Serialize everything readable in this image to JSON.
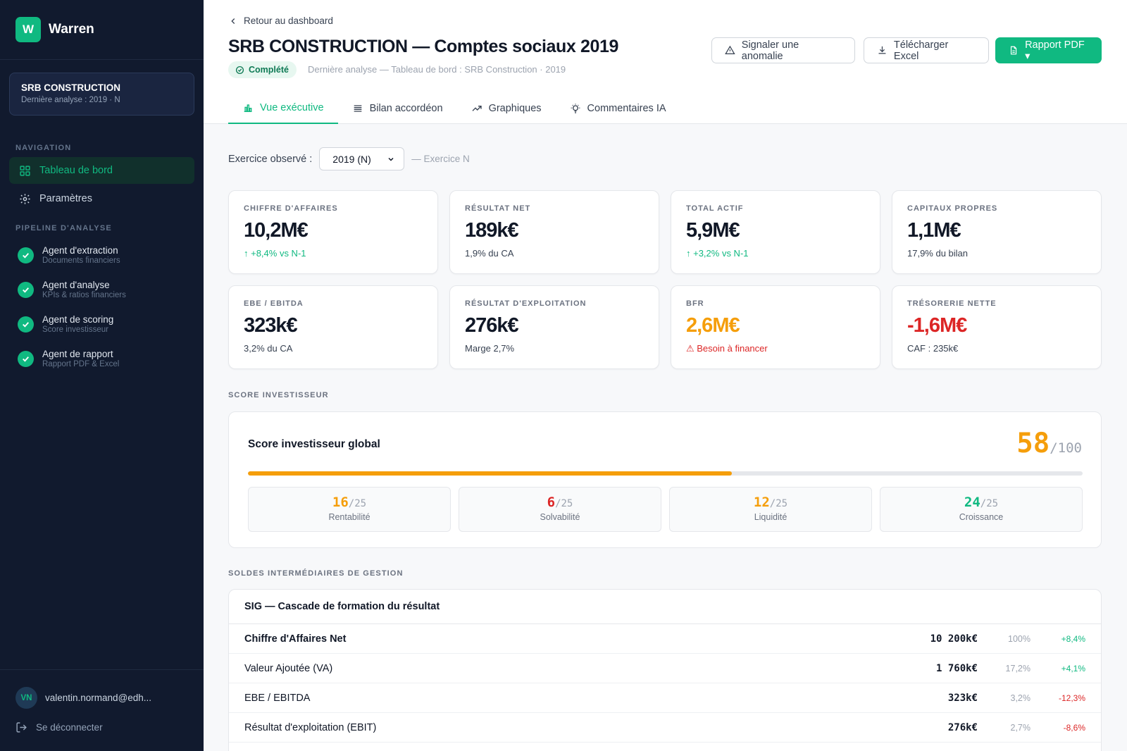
{
  "brand": {
    "logo_letter": "W",
    "name": "Warren",
    "accent": "#10b981"
  },
  "company": {
    "name": "SRB CONSTRUCTION",
    "last_analysis": "Dernière analyse : 2019 · N"
  },
  "sidebar": {
    "nav_label": "NAVIGATION",
    "nav": [
      {
        "label": "Tableau de bord",
        "icon": "grid-icon",
        "active": true
      },
      {
        "label": "Paramètres",
        "icon": "gear-icon",
        "active": false
      }
    ],
    "pipeline_label": "PIPELINE D'ANALYSE",
    "pipeline": [
      {
        "title": "Agent d'extraction",
        "sub": "Documents financiers"
      },
      {
        "title": "Agent d'analyse",
        "sub": "KPIs & ratios financiers"
      },
      {
        "title": "Agent de scoring",
        "sub": "Score investisseur"
      },
      {
        "title": "Agent de rapport",
        "sub": "Rapport PDF & Excel"
      }
    ],
    "user": {
      "initials": "VN",
      "email": "valentin.normand@edh..."
    },
    "logout": "Se déconnecter"
  },
  "header": {
    "back": "Retour au dashboard",
    "title": "SRB CONSTRUCTION — Comptes sociaux 2019",
    "status": "Complété",
    "last_analysis": "Dernière analyse — Tableau de bord : SRB Construction · 2019",
    "buttons": {
      "anomaly": "Signaler une anomalie",
      "excel": "Télécharger Excel",
      "pdf": "Rapport PDF ▾"
    },
    "tabs": [
      {
        "label": "Vue exécutive",
        "icon": "bar-chart-icon",
        "active": true
      },
      {
        "label": "Bilan accordéon",
        "icon": "list-icon",
        "active": false
      },
      {
        "label": "Graphiques",
        "icon": "trend-icon",
        "active": false
      },
      {
        "label": "Commentaires IA",
        "icon": "lightbulb-icon",
        "active": false
      }
    ]
  },
  "exercise": {
    "label": "Exercice observé :",
    "selected": "2019 (N)",
    "note": "— Exercice N"
  },
  "kpis": [
    {
      "label": "CHIFFRE D'AFFAIRES",
      "value": "10,2M€",
      "sub": "↑ +8,4% vs N-1",
      "value_color": "default",
      "sub_color": "green"
    },
    {
      "label": "RÉSULTAT NET",
      "value": "189k€",
      "sub": "1,9% du CA",
      "value_color": "default",
      "sub_color": "default"
    },
    {
      "label": "TOTAL ACTIF",
      "value": "5,9M€",
      "sub": "↑ +3,2% vs N-1",
      "value_color": "default",
      "sub_color": "green"
    },
    {
      "label": "CAPITAUX PROPRES",
      "value": "1,1M€",
      "sub": "17,9% du bilan",
      "value_color": "default",
      "sub_color": "default"
    },
    {
      "label": "EBE / EBITDA",
      "value": "323k€",
      "sub": "3,2% du CA",
      "value_color": "default",
      "sub_color": "default"
    },
    {
      "label": "RÉSULTAT D'EXPLOITATION",
      "value": "276k€",
      "sub": "Marge 2,7%",
      "value_color": "default",
      "sub_color": "default"
    },
    {
      "label": "BFR",
      "value": "2,6M€",
      "sub": "⚠ Besoin à financer",
      "value_color": "orange",
      "sub_color": "red"
    },
    {
      "label": "TRÉSORERIE NETTE",
      "value": "-1,6M€",
      "sub": "CAF : 235k€",
      "value_color": "red",
      "sub_color": "default"
    }
  ],
  "score": {
    "section_label": "SCORE INVESTISSEUR",
    "title": "Score investisseur global",
    "value": "58",
    "max": "/100",
    "fill_fraction": 0.58,
    "color": "#f59e0b",
    "subs": [
      {
        "value": "16",
        "max": "/25",
        "name": "Rentabilité",
        "color": "orange"
      },
      {
        "value": "6",
        "max": "/25",
        "name": "Solvabilité",
        "color": "red"
      },
      {
        "value": "12",
        "max": "/25",
        "name": "Liquidité",
        "color": "orange"
      },
      {
        "value": "24",
        "max": "/25",
        "name": "Croissance",
        "color": "green"
      }
    ]
  },
  "sig": {
    "section_label": "SOLDES INTERMÉDIAIRES DE GESTION",
    "title": "SIG — Cascade de formation du résultat",
    "rows": [
      {
        "label": "Chiffre d'Affaires Net",
        "value": "10 200k€",
        "pct": "100%",
        "var": "+8,4%",
        "var_color": "green",
        "bold": true
      },
      {
        "label": "Valeur Ajoutée (VA)",
        "value": "1 760k€",
        "pct": "17,2%",
        "var": "+4,1%",
        "var_color": "green",
        "bold": false
      },
      {
        "label": "EBE / EBITDA",
        "value": "323k€",
        "pct": "3,2%",
        "var": "-12,3%",
        "var_color": "red",
        "bold": false
      },
      {
        "label": "Résultat d'exploitation (EBIT)",
        "value": "276k€",
        "pct": "2,7%",
        "var": "-8,6%",
        "var_color": "red",
        "bold": false
      }
    ]
  }
}
